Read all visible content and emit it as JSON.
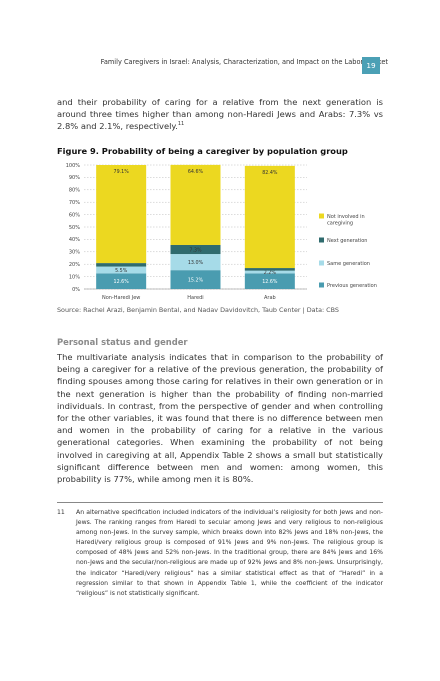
{
  "header": {
    "running_title": "Family Caregivers in Israel: Analysis, Characterization, and Impact on the Labor Market",
    "page_number": "19"
  },
  "intro": {
    "text": "and their probability of caring for a relative from the next generation is around three times higher than among non-Haredi Jews and Arabs: 7.3% vs 2.8% and 2.1%, respectively.",
    "footnote_ref": "11"
  },
  "figure": {
    "title": "Figure 9. Probability of being a caregiver by population group",
    "source": "Source: Rachel Arazi, Benjamin Bental, and Nadav Davidovitch, Taub Center | Data: CBS"
  },
  "chart_data": {
    "type": "bar",
    "stacked": true,
    "categories": [
      "Non-Haredi Jew",
      "Haredi",
      "Arab"
    ],
    "ylim": [
      0,
      100
    ],
    "yticks": [
      "0%",
      "10%",
      "20%",
      "30%",
      "40%",
      "50%",
      "60%",
      "70%",
      "80%",
      "90%",
      "100%"
    ],
    "grid": true,
    "legend_position": "right",
    "series": [
      {
        "name": "Previous generation",
        "color": "#4a9cb0",
        "values": [
          12.6,
          15.2,
          12.6
        ],
        "labels": [
          "12.6%",
          "15.2%",
          "12.6%"
        ]
      },
      {
        "name": "Same generation",
        "color": "#a6dbe8",
        "values": [
          5.5,
          13.0,
          2.2
        ],
        "labels": [
          "5.5%",
          "13.0%",
          "2.2%"
        ]
      },
      {
        "name": "Next generation",
        "color": "#2f6b6e",
        "values": [
          2.8,
          7.3,
          2.1
        ],
        "labels": [
          "",
          "7.3%",
          ""
        ]
      },
      {
        "name": "Not involved in caregiving",
        "color": "#ecd820",
        "values": [
          79.1,
          64.6,
          82.4
        ],
        "labels": [
          "79.1%",
          "64.6%",
          "82.4%"
        ]
      }
    ]
  },
  "section": {
    "heading": "Personal status and gender",
    "body": "The multivariate analysis indicates that in comparison to the probability of being a caregiver for a relative of the previous generation, the probability of finding spouses among those caring for relatives in their own generation or in the next generation is higher than the probability of finding non-married individuals. In contrast, from the perspective of gender and when controlling for the other variables, it was found that there is no difference between men and women in the probability of caring for a relative in the various generational categories. When examining the probability of not being involved in caregiving at all, Appendix Table 2 shows a small but statistically significant difference between men and women: among women, this probability is 77%, while among men it is 80%."
  },
  "footnote": {
    "number": "11",
    "text": "An alternative specification included indicators of the individual’s religiosity for both Jews and non-Jews. The ranking ranges from Haredi to secular among Jews and very religious to non-religious among non-Jews. In the survey sample, which breaks down into 82% Jews and 18% non-Jews, the Haredi/very religious group is composed of 91% Jews and 9% non-Jews. The religious group is composed of 48% Jews and 52% non-Jews. In the traditional group, there are 84% Jews and 16% non-Jews and the secular/non-religious are made up of 92% Jews and 8% non-Jews. Unsurprisingly, the indicator “Haredi/very religious” has a similar statistical effect as that of “Haredi” in a regression similar to that shown in Appendix Table 1, while the coefficient of the indicator “religious” is not statistically significant."
  }
}
